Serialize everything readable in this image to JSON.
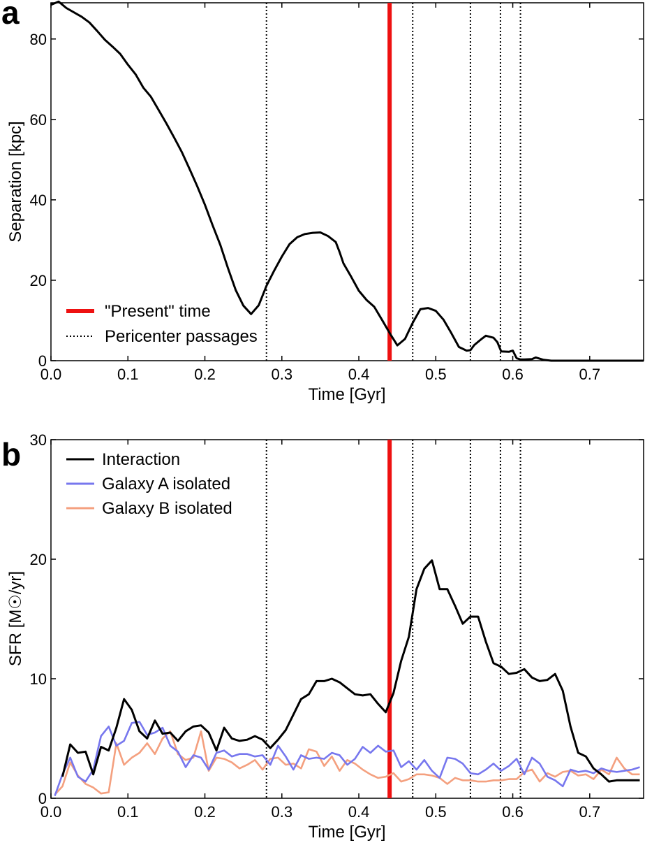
{
  "chart_data": [
    {
      "type": "line",
      "panel_label": "a",
      "xlabel": "Time [Gyr]",
      "ylabel": "Separation [kpc]",
      "xlim": [
        0.0,
        0.77
      ],
      "ylim": [
        0,
        89
      ],
      "xticks": [
        "0.0",
        "0.1",
        "0.2",
        "0.3",
        "0.4",
        "0.5",
        "0.6",
        "0.7"
      ],
      "xtick_values": [
        0.0,
        0.1,
        0.2,
        0.3,
        0.4,
        0.5,
        0.6,
        0.7
      ],
      "yticks": [
        "0",
        "20",
        "40",
        "60",
        "80"
      ],
      "ytick_values": [
        0,
        20,
        40,
        60,
        80
      ],
      "present_time": 0.44,
      "pericenter_passages": [
        0.28,
        0.47,
        0.545,
        0.584,
        0.61
      ],
      "legend": {
        "position": "lower-left",
        "present_label": "\"Present\" time",
        "pericenter_label": "Pericenter passages"
      },
      "present_color": "#ee1111",
      "series": [
        {
          "name": "Separation",
          "color": "#000000",
          "x": [
            0.0,
            0.01,
            0.02,
            0.04,
            0.05,
            0.06,
            0.07,
            0.08,
            0.09,
            0.1,
            0.11,
            0.12,
            0.13,
            0.14,
            0.15,
            0.16,
            0.17,
            0.18,
            0.19,
            0.2,
            0.21,
            0.22,
            0.23,
            0.24,
            0.25,
            0.26,
            0.27,
            0.28,
            0.29,
            0.3,
            0.31,
            0.32,
            0.33,
            0.34,
            0.35,
            0.36,
            0.37,
            0.375,
            0.38,
            0.39,
            0.4,
            0.41,
            0.42,
            0.43,
            0.44,
            0.45,
            0.46,
            0.47,
            0.48,
            0.49,
            0.5,
            0.51,
            0.52,
            0.53,
            0.54,
            0.545,
            0.55,
            0.56,
            0.565,
            0.575,
            0.58,
            0.585,
            0.595,
            0.6,
            0.605,
            0.61,
            0.615,
            0.625,
            0.63,
            0.64,
            0.65,
            0.7,
            0.77
          ],
          "y": [
            88.5,
            89.3,
            87.7,
            85.5,
            84.1,
            82.0,
            79.8,
            78.1,
            76.3,
            73.6,
            71.2,
            67.9,
            65.6,
            62.3,
            59.0,
            55.5,
            51.9,
            47.7,
            43.4,
            38.8,
            33.7,
            28.8,
            23.0,
            17.6,
            13.7,
            11.6,
            13.8,
            18.6,
            22.4,
            25.9,
            29.0,
            30.7,
            31.5,
            31.8,
            31.9,
            31.0,
            29.5,
            27.0,
            24.2,
            20.9,
            17.4,
            15.1,
            13.4,
            10.2,
            6.9,
            3.8,
            5.4,
            9.4,
            12.8,
            13.1,
            12.4,
            10.2,
            6.9,
            3.4,
            2.5,
            2.6,
            3.9,
            5.5,
            6.2,
            5.7,
            4.6,
            2.3,
            2.2,
            2.5,
            0.6,
            0.3,
            0.3,
            0.4,
            0.8,
            0.2,
            0.0,
            0.0,
            0.0
          ]
        }
      ]
    },
    {
      "type": "line",
      "panel_label": "b",
      "xlabel": "Time [Gyr]",
      "ylabel": "SFR [M☉/yr]",
      "xlim": [
        0.0,
        0.77
      ],
      "ylim": [
        0,
        30
      ],
      "xticks": [
        "0.0",
        "0.1",
        "0.2",
        "0.3",
        "0.4",
        "0.5",
        "0.6",
        "0.7"
      ],
      "xtick_values": [
        0.0,
        0.1,
        0.2,
        0.3,
        0.4,
        0.5,
        0.6,
        0.7
      ],
      "yticks": [
        "0",
        "10",
        "20",
        "30"
      ],
      "ytick_values": [
        0,
        10,
        20,
        30
      ],
      "present_time": 0.44,
      "pericenter_passages": [
        0.28,
        0.47,
        0.545,
        0.584,
        0.61
      ],
      "present_color": "#ee1111",
      "legend": {
        "position": "top-left"
      },
      "series": [
        {
          "name": "Interaction",
          "color": "#000000",
          "x": [
            0.015,
            0.025,
            0.035,
            0.045,
            0.055,
            0.065,
            0.075,
            0.085,
            0.095,
            0.105,
            0.115,
            0.125,
            0.135,
            0.145,
            0.155,
            0.165,
            0.175,
            0.185,
            0.195,
            0.205,
            0.215,
            0.225,
            0.235,
            0.245,
            0.255,
            0.265,
            0.275,
            0.285,
            0.295,
            0.305,
            0.315,
            0.325,
            0.335,
            0.345,
            0.355,
            0.365,
            0.375,
            0.385,
            0.395,
            0.405,
            0.415,
            0.425,
            0.435,
            0.445,
            0.455,
            0.465,
            0.475,
            0.485,
            0.495,
            0.505,
            0.515,
            0.525,
            0.535,
            0.545,
            0.555,
            0.565,
            0.575,
            0.585,
            0.595,
            0.605,
            0.615,
            0.625,
            0.635,
            0.645,
            0.655,
            0.665,
            0.675,
            0.685,
            0.695,
            0.705,
            0.715,
            0.725,
            0.735,
            0.745,
            0.755,
            0.765
          ],
          "y": [
            1.8,
            4.5,
            3.8,
            3.9,
            2.0,
            4.3,
            4.0,
            5.9,
            8.3,
            7.4,
            5.6,
            5.0,
            6.5,
            5.4,
            5.5,
            4.8,
            5.6,
            6.0,
            6.1,
            5.5,
            4.0,
            5.9,
            5.0,
            4.8,
            4.9,
            5.2,
            4.9,
            4.2,
            4.9,
            5.7,
            7.0,
            8.3,
            8.7,
            9.8,
            9.8,
            10.0,
            9.7,
            9.2,
            8.7,
            8.6,
            8.7,
            7.9,
            7.2,
            8.8,
            11.5,
            13.5,
            17.5,
            19.2,
            19.9,
            17.5,
            17.5,
            16.1,
            14.6,
            15.2,
            15.2,
            13.1,
            11.3,
            11.0,
            10.4,
            10.5,
            10.8,
            10.1,
            9.8,
            9.9,
            10.4,
            9.0,
            6.0,
            3.8,
            3.5,
            2.5,
            2.0,
            1.4,
            1.5,
            1.5,
            1.5,
            1.5
          ]
        },
        {
          "name": "Galaxy A isolated",
          "color": "#7777ee",
          "x": [
            0.005,
            0.015,
            0.025,
            0.035,
            0.045,
            0.055,
            0.065,
            0.075,
            0.085,
            0.095,
            0.105,
            0.115,
            0.125,
            0.135,
            0.145,
            0.155,
            0.165,
            0.175,
            0.185,
            0.195,
            0.205,
            0.215,
            0.225,
            0.235,
            0.245,
            0.255,
            0.265,
            0.275,
            0.285,
            0.295,
            0.305,
            0.315,
            0.325,
            0.335,
            0.345,
            0.355,
            0.365,
            0.375,
            0.385,
            0.395,
            0.405,
            0.415,
            0.425,
            0.435,
            0.445,
            0.455,
            0.465,
            0.475,
            0.485,
            0.495,
            0.505,
            0.515,
            0.525,
            0.535,
            0.545,
            0.555,
            0.565,
            0.575,
            0.585,
            0.595,
            0.605,
            0.615,
            0.625,
            0.635,
            0.645,
            0.655,
            0.665,
            0.675,
            0.685,
            0.695,
            0.705,
            0.715,
            0.725,
            0.735,
            0.745,
            0.755,
            0.765
          ],
          "y": [
            0.2,
            2.0,
            3.4,
            1.8,
            1.4,
            2.4,
            5.2,
            6.0,
            4.4,
            4.8,
            6.3,
            6.4,
            5.3,
            5.5,
            5.9,
            4.4,
            3.9,
            2.6,
            3.6,
            3.4,
            2.4,
            3.8,
            4.0,
            3.5,
            3.7,
            3.7,
            3.5,
            3.6,
            2.8,
            4.4,
            3.5,
            2.4,
            3.6,
            3.3,
            3.4,
            3.3,
            3.8,
            3.6,
            2.8,
            3.3,
            4.3,
            3.8,
            4.4,
            3.9,
            4.0,
            2.6,
            3.1,
            2.4,
            3.2,
            2.3,
            1.7,
            3.4,
            3.3,
            2.9,
            2.1,
            2.0,
            2.4,
            2.9,
            2.3,
            2.7,
            3.3,
            2.0,
            3.4,
            2.9,
            1.8,
            1.5,
            1.0,
            2.4,
            2.2,
            2.3,
            2.1,
            2.5,
            2.3,
            2.2,
            2.3,
            2.4,
            2.6
          ]
        },
        {
          "name": "Galaxy B isolated",
          "color": "#f4a07f",
          "x": [
            0.005,
            0.015,
            0.025,
            0.035,
            0.045,
            0.055,
            0.065,
            0.075,
            0.085,
            0.095,
            0.105,
            0.115,
            0.125,
            0.135,
            0.145,
            0.155,
            0.165,
            0.175,
            0.185,
            0.195,
            0.205,
            0.215,
            0.225,
            0.235,
            0.245,
            0.255,
            0.265,
            0.275,
            0.285,
            0.295,
            0.305,
            0.315,
            0.325,
            0.335,
            0.345,
            0.355,
            0.365,
            0.375,
            0.385,
            0.395,
            0.405,
            0.415,
            0.425,
            0.435,
            0.445,
            0.455,
            0.465,
            0.475,
            0.485,
            0.495,
            0.505,
            0.515,
            0.525,
            0.535,
            0.545,
            0.555,
            0.565,
            0.575,
            0.585,
            0.595,
            0.605,
            0.615,
            0.625,
            0.635,
            0.645,
            0.655,
            0.665,
            0.675,
            0.685,
            0.695,
            0.705,
            0.715,
            0.725,
            0.735,
            0.745,
            0.755,
            0.765
          ],
          "y": [
            0.3,
            1.0,
            3.0,
            1.9,
            1.2,
            0.9,
            0.4,
            0.5,
            4.6,
            2.8,
            3.4,
            3.8,
            4.6,
            3.7,
            5.0,
            5.6,
            3.7,
            3.2,
            3.4,
            5.6,
            2.3,
            3.4,
            3.3,
            3.0,
            2.5,
            2.8,
            3.2,
            2.4,
            3.3,
            3.4,
            2.8,
            2.9,
            2.5,
            4.1,
            3.9,
            2.7,
            3.5,
            2.3,
            3.2,
            2.9,
            2.4,
            2.0,
            1.7,
            1.8,
            2.1,
            1.4,
            1.6,
            2.0,
            2.0,
            1.9,
            1.7,
            1.2,
            1.7,
            1.5,
            1.5,
            1.4,
            1.4,
            1.5,
            1.5,
            1.6,
            1.6,
            2.2,
            2.4,
            1.4,
            2.1,
            1.8,
            2.2,
            2.3,
            1.9,
            2.0,
            1.6,
            2.4,
            2.0,
            3.4,
            2.5,
            2.0,
            2.0
          ]
        }
      ]
    }
  ]
}
